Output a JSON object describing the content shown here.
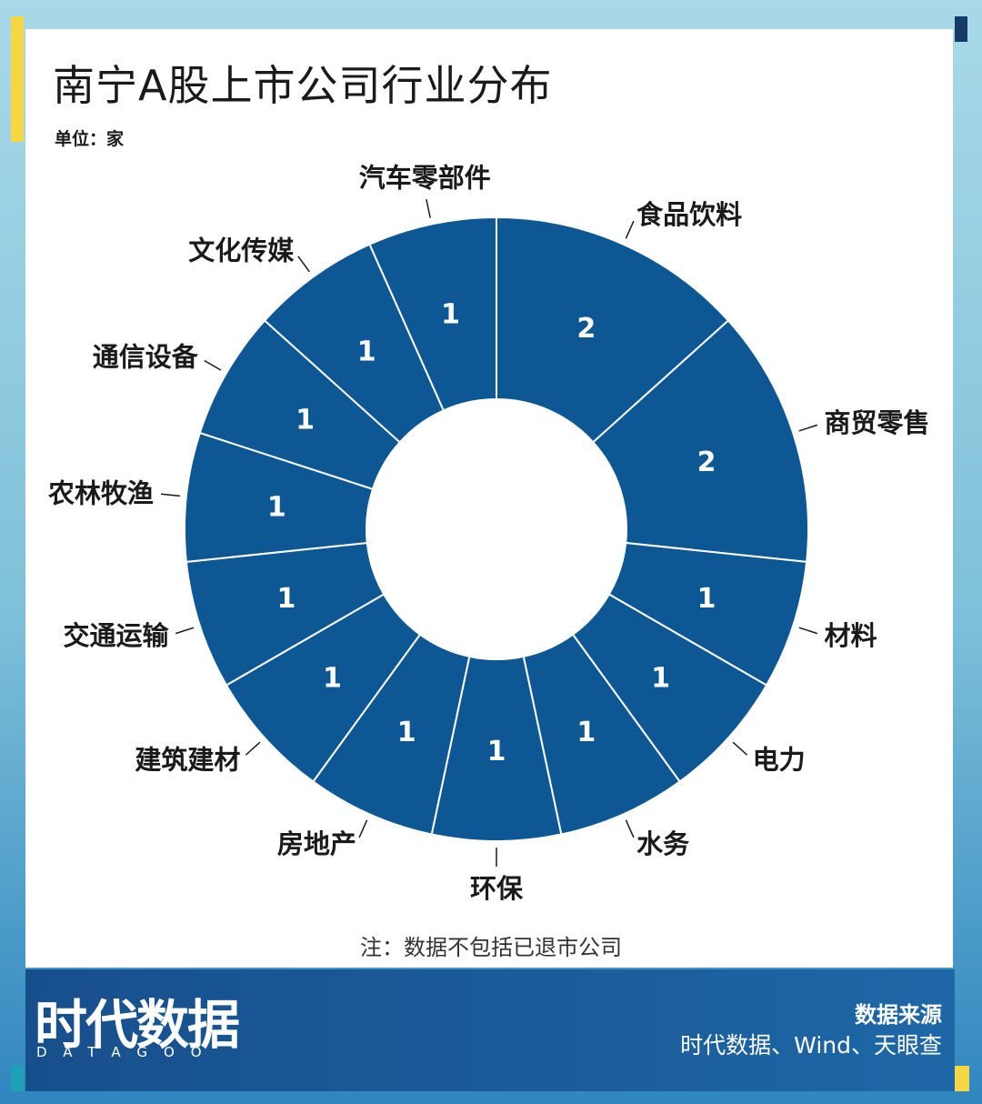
{
  "title": "南宁A股上市公司行业分布",
  "unit": "单位：家",
  "note": "注：数据不包括已退市公司",
  "footer": {
    "logo": "时代数据",
    "logo_sub": "DATAGOO",
    "source_label": "数据来源",
    "source_text": "时代数据、Wind、天眼查"
  },
  "colors": {
    "slice": "#0e5795",
    "slice_border": "#ffffff",
    "label": "#1a1a1a",
    "value": "#ffffff"
  },
  "chart_data": {
    "type": "pie",
    "variant": "donut",
    "categories": [
      "食品饮料",
      "商贸零售",
      "材料",
      "电力",
      "水务",
      "环保",
      "房地产",
      "建筑建材",
      "交通运输",
      "农林牧渔",
      "通信设备",
      "文化传媒",
      "汽车零部件"
    ],
    "values": [
      2,
      2,
      1,
      1,
      1,
      1,
      1,
      1,
      1,
      1,
      1,
      1,
      1
    ],
    "start": "top",
    "direction": "clockwise",
    "legend": "none"
  }
}
